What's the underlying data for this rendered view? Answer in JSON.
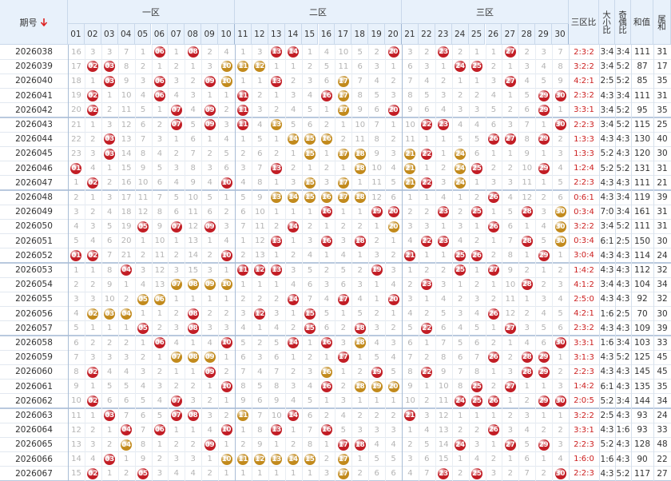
{
  "header": {
    "period": "期号",
    "zones": [
      "一区",
      "二区",
      "三区"
    ],
    "numbers": [
      "01",
      "02",
      "03",
      "04",
      "05",
      "06",
      "07",
      "08",
      "09",
      "10",
      "11",
      "12",
      "13",
      "14",
      "15",
      "16",
      "17",
      "18",
      "19",
      "20",
      "21",
      "22",
      "23",
      "24",
      "25",
      "26",
      "27",
      "28",
      "29",
      "30"
    ],
    "zone_ratio": "三区比",
    "big_small": "大小比",
    "odd_even": "奇偶比",
    "sum": "和值",
    "tail_sum": "尾和"
  },
  "colors": {
    "ball": "#c21d25",
    "gold": "#c28a1c",
    "omission": "#b4b4b4",
    "ratio": "#cc1f1f"
  },
  "rows": [
    {
      "period": "2026038",
      "cells": [
        16,
        3,
        3,
        7,
        1,
        "06",
        1,
        "08",
        2,
        4,
        1,
        3,
        "13",
        "14",
        1,
        4,
        10,
        5,
        2,
        "20",
        3,
        2,
        "23",
        2,
        1,
        1,
        "27",
        2,
        3,
        7
      ],
      "gold": [],
      "zone_ratio": "2:3:2",
      "big_small": "3:4",
      "odd_even": "3:4",
      "sum": 111,
      "tail_sum": 31
    },
    {
      "period": "2026039",
      "cells": [
        17,
        "02",
        "03",
        8,
        2,
        1,
        2,
        1,
        3,
        "10",
        "11",
        "12",
        1,
        1,
        2,
        5,
        11,
        6,
        3,
        1,
        6,
        3,
        1,
        "24",
        "25",
        2,
        1,
        3,
        4,
        8
      ],
      "gold": [
        "10",
        "11",
        "12"
      ],
      "zone_ratio": "3:2:2",
      "big_small": "3:4",
      "odd_even": "5:2",
      "sum": 87,
      "tail_sum": 17
    },
    {
      "period": "2026040",
      "cells": [
        18,
        1,
        "03",
        9,
        3,
        "06",
        3,
        2,
        "09",
        "10",
        1,
        1,
        "13",
        2,
        3,
        6,
        "17",
        7,
        4,
        2,
        7,
        4,
        2,
        1,
        1,
        3,
        "27",
        4,
        5,
        9
      ],
      "gold": [
        "10",
        "17"
      ],
      "zone_ratio": "4:2:1",
      "big_small": "2:5",
      "odd_even": "5:2",
      "sum": 85,
      "tail_sum": 35
    },
    {
      "period": "2026041",
      "cells": [
        19,
        "02",
        1,
        10,
        4,
        "06",
        4,
        3,
        1,
        1,
        "11",
        2,
        1,
        3,
        4,
        "16",
        "17",
        8,
        5,
        3,
        8,
        5,
        3,
        2,
        2,
        4,
        1,
        5,
        "29",
        "30"
      ],
      "gold": [
        "17"
      ],
      "zone_ratio": "2:3:2",
      "big_small": "4:3",
      "odd_even": "3:4",
      "sum": 111,
      "tail_sum": 31
    },
    {
      "period": "2026042",
      "cells": [
        20,
        "02",
        2,
        11,
        5,
        1,
        "07",
        4,
        "09",
        2,
        "11",
        3,
        2,
        4,
        5,
        1,
        "17",
        9,
        6,
        "20",
        9,
        6,
        4,
        3,
        3,
        5,
        2,
        6,
        "29",
        1
      ],
      "gold": [
        "17"
      ],
      "zone_ratio": "3:3:1",
      "big_small": "3:4",
      "odd_even": "5:2",
      "sum": 95,
      "tail_sum": 35
    },
    {
      "period": "2026043",
      "cells": [
        21,
        1,
        3,
        12,
        6,
        2,
        "07",
        5,
        "09",
        3,
        "11",
        4,
        "13",
        5,
        6,
        2,
        1,
        10,
        7,
        1,
        10,
        "22",
        "23",
        4,
        4,
        6,
        3,
        7,
        1,
        "30"
      ],
      "gold": [
        "13"
      ],
      "zone_ratio": "2:2:3",
      "big_small": "3:4",
      "odd_even": "5:2",
      "sum": 115,
      "tail_sum": 25
    },
    {
      "period": "2026044",
      "cells": [
        22,
        2,
        "03",
        13,
        7,
        3,
        1,
        6,
        1,
        4,
        1,
        5,
        1,
        "14",
        "15",
        "16",
        2,
        11,
        8,
        2,
        11,
        1,
        1,
        5,
        5,
        "26",
        "27",
        8,
        "29",
        2
      ],
      "gold": [
        "14",
        "15",
        "16"
      ],
      "zone_ratio": "1:3:3",
      "big_small": "4:3",
      "odd_even": "4:3",
      "sum": 130,
      "tail_sum": 40
    },
    {
      "period": "2026045",
      "cells": [
        23,
        3,
        "03",
        14,
        8,
        4,
        2,
        7,
        2,
        5,
        2,
        6,
        2,
        1,
        "15",
        1,
        "17",
        "18",
        9,
        3,
        "21",
        "22",
        1,
        "24",
        6,
        1,
        1,
        9,
        1,
        3
      ],
      "gold": [
        "15",
        "17",
        "18",
        "21",
        "24"
      ],
      "zone_ratio": "1:3:3",
      "big_small": "5:2",
      "odd_even": "4:3",
      "sum": 120,
      "tail_sum": 30
    },
    {
      "period": "2026046",
      "cells": [
        "01",
        4,
        1,
        15,
        9,
        5,
        3,
        8,
        3,
        6,
        3,
        7,
        "13",
        2,
        1,
        2,
        1,
        "18",
        10,
        4,
        "21",
        1,
        2,
        "24",
        "25",
        2,
        2,
        10,
        "29",
        4
      ],
      "gold": [
        "18",
        "21",
        "24"
      ],
      "zone_ratio": "1:2:4",
      "big_small": "5:2",
      "odd_even": "5:2",
      "sum": 131,
      "tail_sum": 31
    },
    {
      "period": "2026047",
      "cells": [
        1,
        "02",
        2,
        16,
        10,
        6,
        4,
        9,
        4,
        "10",
        4,
        8,
        1,
        3,
        "15",
        3,
        "17",
        1,
        11,
        5,
        "21",
        "22",
        3,
        "24",
        1,
        3,
        3,
        11,
        1,
        5
      ],
      "gold": [
        "15",
        "17",
        "21",
        "24"
      ],
      "zone_ratio": "2:2:3",
      "big_small": "4:3",
      "odd_even": "4:3",
      "sum": 111,
      "tail_sum": 21
    },
    {
      "period": "2026048",
      "cells": [
        2,
        1,
        3,
        17,
        11,
        7,
        5,
        10,
        5,
        1,
        5,
        9,
        "13",
        "14",
        "15",
        "16",
        "17",
        "18",
        12,
        6,
        1,
        1,
        4,
        1,
        2,
        "26",
        4,
        12,
        2,
        6
      ],
      "gold": [
        "13",
        "14",
        "15",
        "16",
        "17",
        "18"
      ],
      "zone_ratio": "0:6:1",
      "big_small": "4:3",
      "odd_even": "3:4",
      "sum": 119,
      "tail_sum": 39
    },
    {
      "period": "2026049",
      "cells": [
        3,
        2,
        4,
        18,
        12,
        8,
        6,
        11,
        6,
        2,
        6,
        10,
        1,
        1,
        1,
        "16",
        1,
        1,
        "19",
        "20",
        2,
        2,
        "23",
        2,
        "25",
        1,
        5,
        "28",
        3,
        "30"
      ],
      "gold": [
        "30"
      ],
      "zone_ratio": "0:3:4",
      "big_small": "7:0",
      "odd_even": "3:4",
      "sum": 161,
      "tail_sum": 31
    },
    {
      "period": "2026050",
      "cells": [
        4,
        3,
        5,
        19,
        "05",
        9,
        "07",
        12,
        "09",
        3,
        7,
        11,
        2,
        "14",
        2,
        1,
        2,
        2,
        1,
        "20",
        3,
        3,
        1,
        3,
        1,
        "26",
        6,
        1,
        4,
        "30"
      ],
      "gold": [
        "20",
        "30"
      ],
      "zone_ratio": "3:2:2",
      "big_small": "3:4",
      "odd_even": "5:2",
      "sum": 111,
      "tail_sum": 31
    },
    {
      "period": "2026051",
      "cells": [
        5,
        4,
        6,
        20,
        1,
        10,
        1,
        13,
        1,
        4,
        1,
        12,
        "13",
        1,
        3,
        "16",
        3,
        "18",
        2,
        1,
        4,
        "22",
        "23",
        4,
        2,
        1,
        7,
        "28",
        5,
        "30"
      ],
      "gold": [
        "30"
      ],
      "zone_ratio": "0:3:4",
      "big_small": "6:1",
      "odd_even": "2:5",
      "sum": 150,
      "tail_sum": 30
    },
    {
      "period": "2026052",
      "cells": [
        "01",
        "02",
        7,
        21,
        2,
        11,
        2,
        14,
        2,
        "10",
        2,
        13,
        1,
        2,
        4,
        1,
        4,
        1,
        3,
        2,
        "21",
        1,
        1,
        "25",
        "26",
        2,
        8,
        1,
        "29",
        1
      ],
      "gold": [],
      "zone_ratio": "3:0:4",
      "big_small": "4:3",
      "odd_even": "4:3",
      "sum": 114,
      "tail_sum": 24
    },
    {
      "period": "2026053",
      "cells": [
        1,
        1,
        8,
        "04",
        3,
        12,
        3,
        15,
        3,
        1,
        "11",
        "12",
        "13",
        3,
        5,
        2,
        5,
        2,
        "19",
        3,
        1,
        2,
        2,
        "25",
        1,
        "27",
        9,
        2,
        1,
        2
      ],
      "gold": [],
      "zone_ratio": "1:4:2",
      "big_small": "4:3",
      "odd_even": "4:3",
      "sum": 112,
      "tail_sum": 32
    },
    {
      "period": "2026054",
      "cells": [
        2,
        2,
        9,
        1,
        4,
        13,
        "07",
        "08",
        "09",
        "10",
        1,
        1,
        1,
        4,
        6,
        3,
        6,
        3,
        1,
        4,
        2,
        "23",
        3,
        1,
        2,
        1,
        10,
        "28",
        2,
        3
      ],
      "gold": [
        "07",
        "08",
        "09",
        "10"
      ],
      "zone_ratio": "4:1:2",
      "big_small": "3:4",
      "odd_even": "4:3",
      "sum": 104,
      "tail_sum": 34
    },
    {
      "period": "2026055",
      "cells": [
        3,
        3,
        10,
        2,
        "05",
        "06",
        1,
        1,
        1,
        1,
        2,
        2,
        2,
        "14",
        7,
        4,
        "17",
        4,
        1,
        "20",
        3,
        1,
        4,
        2,
        3,
        2,
        11,
        1,
        3,
        4
      ],
      "gold": [
        "05",
        "06"
      ],
      "zone_ratio": "2:5:0",
      "big_small": "4:3",
      "odd_even": "4:3",
      "sum": 92,
      "tail_sum": 32
    },
    {
      "period": "2026056",
      "cells": [
        4,
        "02",
        "03",
        "04",
        1,
        1,
        2,
        "08",
        2,
        2,
        3,
        "12",
        3,
        1,
        "15",
        5,
        1,
        5,
        2,
        1,
        4,
        2,
        5,
        3,
        4,
        "26",
        12,
        2,
        4,
        5
      ],
      "gold": [
        "02",
        "03",
        "04"
      ],
      "zone_ratio": "4:2:1",
      "big_small": "1:6",
      "odd_even": "2:5",
      "sum": 70,
      "tail_sum": 30
    },
    {
      "period": "2026057",
      "cells": [
        5,
        1,
        1,
        1,
        "05",
        2,
        3,
        "08",
        3,
        3,
        4,
        1,
        4,
        2,
        "15",
        6,
        2,
        "18",
        3,
        2,
        5,
        "22",
        6,
        4,
        5,
        1,
        "27",
        3,
        5,
        6
      ],
      "gold": [],
      "zone_ratio": "2:3:2",
      "big_small": "4:3",
      "odd_even": "4:3",
      "sum": 109,
      "tail_sum": 39
    },
    {
      "period": "2026058",
      "cells": [
        6,
        2,
        2,
        2,
        1,
        "06",
        4,
        1,
        4,
        "10",
        5,
        2,
        5,
        "14",
        1,
        "16",
        3,
        "18",
        4,
        3,
        6,
        1,
        7,
        5,
        6,
        2,
        1,
        4,
        6,
        "30"
      ],
      "gold": [
        "18"
      ],
      "zone_ratio": "3:3:1",
      "big_small": "1:6",
      "odd_even": "3:4",
      "sum": 103,
      "tail_sum": 33
    },
    {
      "period": "2026059",
      "cells": [
        7,
        3,
        3,
        3,
        2,
        1,
        "07",
        "08",
        "09",
        1,
        6,
        3,
        6,
        1,
        2,
        1,
        "17",
        1,
        5,
        4,
        7,
        2,
        8,
        6,
        7,
        "26",
        2,
        "28",
        "29",
        1
      ],
      "gold": [
        "07",
        "08",
        "09"
      ],
      "zone_ratio": "3:1:3",
      "big_small": "4:3",
      "odd_even": "5:2",
      "sum": 125,
      "tail_sum": 45
    },
    {
      "period": "2026060",
      "cells": [
        8,
        "02",
        4,
        4,
        3,
        2,
        1,
        1,
        "09",
        2,
        7,
        4,
        7,
        2,
        3,
        "16",
        1,
        2,
        "19",
        5,
        8,
        "22",
        9,
        7,
        8,
        1,
        3,
        "28",
        "29",
        2
      ],
      "gold": [
        "16"
      ],
      "zone_ratio": "2:2:3",
      "big_small": "4:3",
      "odd_even": "4:3",
      "sum": 145,
      "tail_sum": 45
    },
    {
      "period": "2026061",
      "cells": [
        9,
        1,
        5,
        5,
        4,
        3,
        2,
        2,
        1,
        "10",
        8,
        5,
        8,
        3,
        4,
        "16",
        2,
        "18",
        "19",
        "20",
        9,
        1,
        10,
        8,
        "25",
        2,
        "27",
        1,
        1,
        3
      ],
      "gold": [
        "18",
        "19",
        "20"
      ],
      "zone_ratio": "1:4:2",
      "big_small": "6:1",
      "odd_even": "4:3",
      "sum": 135,
      "tail_sum": 35
    },
    {
      "period": "2026062",
      "cells": [
        10,
        "02",
        6,
        6,
        5,
        4,
        "07",
        3,
        2,
        1,
        9,
        6,
        9,
        4,
        5,
        1,
        3,
        1,
        1,
        1,
        10,
        2,
        11,
        "24",
        "25",
        "26",
        1,
        2,
        "29",
        "30"
      ],
      "gold": [],
      "zone_ratio": "2:0:5",
      "big_small": "5:2",
      "odd_even": "3:4",
      "sum": 144,
      "tail_sum": 34
    },
    {
      "period": "2026063",
      "cells": [
        11,
        1,
        "03",
        7,
        6,
        5,
        "07",
        "08",
        3,
        2,
        "11",
        7,
        10,
        "14",
        6,
        2,
        4,
        2,
        2,
        2,
        "21",
        3,
        12,
        1,
        1,
        1,
        2,
        3,
        1,
        1
      ],
      "gold": [
        "11"
      ],
      "zone_ratio": "3:2:2",
      "big_small": "2:5",
      "odd_even": "4:3",
      "sum": 93,
      "tail_sum": 24
    },
    {
      "period": "2026064",
      "cells": [
        12,
        2,
        1,
        "04",
        7,
        "06",
        1,
        1,
        4,
        "10",
        1,
        8,
        "13",
        1,
        7,
        "16",
        5,
        3,
        3,
        3,
        1,
        4,
        13,
        2,
        2,
        "26",
        3,
        4,
        2,
        2
      ],
      "gold": [],
      "zone_ratio": "3:3:1",
      "big_small": "4:3",
      "odd_even": "1:6",
      "sum": 93,
      "tail_sum": 33
    },
    {
      "period": "2026065",
      "cells": [
        13,
        3,
        2,
        "04",
        8,
        1,
        2,
        2,
        "09",
        1,
        2,
        9,
        1,
        2,
        8,
        1,
        "17",
        "18",
        4,
        4,
        2,
        5,
        14,
        "24",
        3,
        1,
        "27",
        5,
        "29",
        3
      ],
      "gold": [
        "04"
      ],
      "zone_ratio": "2:2:3",
      "big_small": "5:2",
      "odd_even": "4:3",
      "sum": 128,
      "tail_sum": 48
    },
    {
      "period": "2026066",
      "cells": [
        14,
        4,
        "03",
        1,
        9,
        2,
        3,
        3,
        1,
        "10",
        "11",
        "12",
        "13",
        "14",
        "15",
        2,
        "17",
        1,
        5,
        5,
        3,
        6,
        15,
        1,
        4,
        2,
        1,
        6,
        1,
        4
      ],
      "gold": [
        "10",
        "11",
        "12",
        "13",
        "14",
        "15",
        "17"
      ],
      "zone_ratio": "1:6:0",
      "big_small": "1:6",
      "odd_even": "4:3",
      "sum": 90,
      "tail_sum": 22
    },
    {
      "period": "2026067",
      "cells": [
        15,
        "02",
        1,
        2,
        "05",
        3,
        4,
        4,
        2,
        1,
        1,
        1,
        1,
        1,
        1,
        3,
        "17",
        2,
        6,
        6,
        4,
        7,
        "23",
        2,
        "25",
        3,
        2,
        7,
        2,
        "30"
      ],
      "gold": [
        "17"
      ],
      "zone_ratio": "2:2:3",
      "big_small": "4:3",
      "odd_even": "5:2",
      "sum": 117,
      "tail_sum": 27
    }
  ]
}
